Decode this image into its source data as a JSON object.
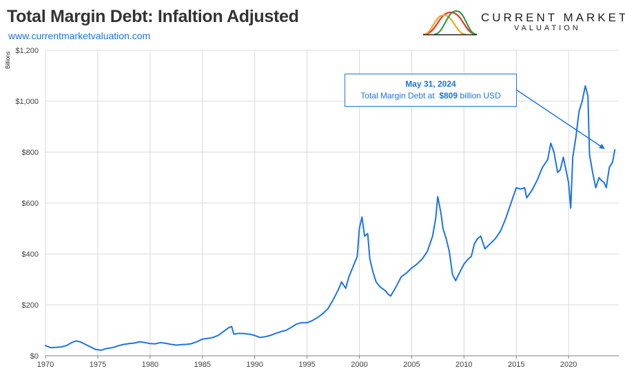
{
  "header": {
    "title": "Total Margin Debt: Infaltion Adjusted",
    "url": "www.currentmarketvaluation.com"
  },
  "logo": {
    "line1": "CURRENT MARKET",
    "line2": "VALUATION",
    "icon": "bell-curves-icon",
    "colors": [
      "#e8322b",
      "#f0a81e",
      "#2e9e44"
    ]
  },
  "annotation": {
    "date": "May 31, 2024",
    "prefix": "Total Margin Debt at",
    "value": "$809",
    "suffix": "billion USD"
  },
  "chart_data": {
    "type": "line",
    "ylabel": "Billions",
    "xlim": [
      1970,
      2024.8
    ],
    "ylim": [
      0,
      1200
    ],
    "y_ticks": [
      0,
      200,
      400,
      600,
      800,
      1000,
      1200
    ],
    "y_tick_labels": [
      "$0",
      "$200",
      "$400",
      "$600",
      "$800",
      "$1,000",
      "$1,200"
    ],
    "x_ticks": [
      1970,
      1975,
      1980,
      1985,
      1990,
      1995,
      2000,
      2005,
      2010,
      2015,
      2020
    ],
    "x_tick_labels": [
      "1970",
      "1975",
      "1980",
      "1985",
      "1990",
      "1995",
      "2000",
      "2005",
      "2010",
      "2015",
      "2020"
    ],
    "grid": true,
    "line_color": "#1a73e8",
    "series": [
      {
        "x": [
          1970.0,
          1970.5,
          1971.0,
          1971.5,
          1972.0,
          1972.5,
          1972.9,
          1973.3,
          1973.8,
          1974.3,
          1974.8,
          1975.3,
          1975.8,
          1976.5,
          1977.0,
          1977.5,
          1978.0,
          1978.5,
          1979.0,
          1979.5,
          1980.0,
          1980.5,
          1981.0,
          1981.5,
          1982.0,
          1982.5,
          1983.0,
          1983.5,
          1984.0,
          1984.5,
          1985.0,
          1985.5,
          1986.0,
          1986.5,
          1987.0,
          1987.5,
          1987.8,
          1988.0,
          1988.5,
          1989.0,
          1989.5,
          1990.0,
          1990.5,
          1991.0,
          1991.5,
          1992.0,
          1992.5,
          1993.0,
          1993.5,
          1994.0,
          1994.5,
          1995.0,
          1995.5,
          1996.0,
          1996.5,
          1997.0,
          1997.5,
          1998.0,
          1998.3,
          1998.7,
          1999.0,
          1999.5,
          1999.8,
          2000.0,
          2000.25,
          2000.5,
          2000.8,
          2001.0,
          2001.3,
          2001.6,
          2002.0,
          2002.5,
          2002.8,
          2003.0,
          2003.5,
          2004.0,
          2004.5,
          2005.0,
          2005.5,
          2006.0,
          2006.5,
          2007.0,
          2007.3,
          2007.5,
          2007.8,
          2008.0,
          2008.3,
          2008.6,
          2008.9,
          2009.2,
          2009.5,
          2010.0,
          2010.4,
          2010.7,
          2011.0,
          2011.3,
          2011.6,
          2012.0,
          2012.5,
          2013.0,
          2013.5,
          2014.0,
          2014.5,
          2015.0,
          2015.4,
          2015.8,
          2016.0,
          2016.5,
          2017.0,
          2017.5,
          2018.0,
          2018.3,
          2018.6,
          2018.95,
          2019.2,
          2019.5,
          2019.8,
          2020.0,
          2020.2,
          2020.4,
          2020.7,
          2021.0,
          2021.3,
          2021.6,
          2021.85,
          2022.0,
          2022.3,
          2022.6,
          2022.9,
          2023.1,
          2023.4,
          2023.6,
          2023.9,
          2024.2,
          2024.42
        ],
        "values": [
          40,
          32,
          33,
          35,
          40,
          52,
          58,
          55,
          45,
          35,
          25,
          22,
          28,
          33,
          40,
          45,
          48,
          50,
          55,
          52,
          48,
          47,
          52,
          49,
          45,
          42,
          44,
          45,
          48,
          56,
          65,
          68,
          72,
          80,
          95,
          110,
          115,
          85,
          88,
          87,
          85,
          80,
          72,
          75,
          80,
          88,
          95,
          100,
          112,
          125,
          130,
          130,
          138,
          150,
          165,
          185,
          220,
          260,
          290,
          265,
          310,
          360,
          390,
          500,
          545,
          470,
          480,
          380,
          330,
          290,
          270,
          255,
          240,
          235,
          270,
          310,
          325,
          345,
          360,
          380,
          410,
          470,
          540,
          625,
          560,
          500,
          460,
          410,
          320,
          295,
          320,
          360,
          380,
          390,
          440,
          460,
          470,
          420,
          440,
          460,
          490,
          540,
          600,
          660,
          655,
          660,
          620,
          650,
          690,
          740,
          770,
          835,
          800,
          720,
          730,
          780,
          720,
          680,
          580,
          780,
          860,
          960,
          1000,
          1060,
          1020,
          790,
          720,
          660,
          700,
          690,
          680,
          660,
          740,
          760,
          809
        ]
      }
    ]
  }
}
